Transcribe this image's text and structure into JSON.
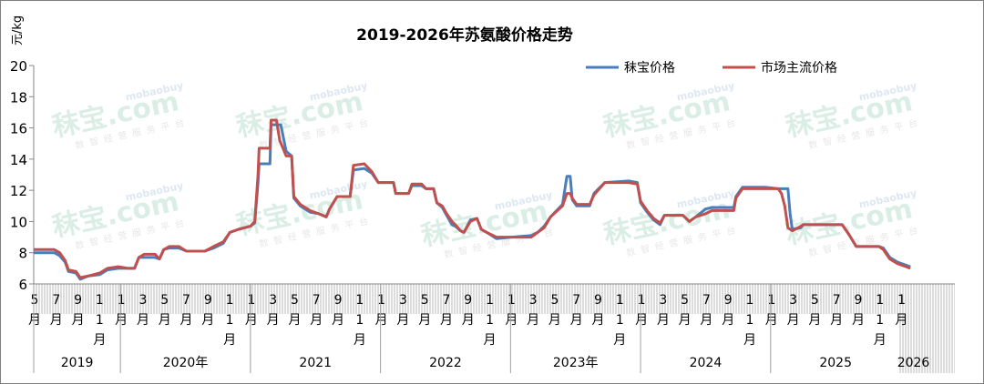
{
  "chart_data": {
    "type": "line",
    "title": "2019-2026年苏氨酸价格走势",
    "ylabel": "元/kg",
    "xlabel": "",
    "ylim": [
      6,
      20
    ],
    "yticks": [
      "6",
      "8",
      "10",
      "12",
      "14",
      "16",
      "18",
      "20"
    ],
    "x_unit": "months since 2019-05",
    "xlim": [
      0,
      85
    ],
    "legend": {
      "placement": "top-right",
      "entries": [
        "秣宝价格",
        "市场主流价格"
      ]
    },
    "grid": false,
    "month_labels": [
      {
        "m": 0,
        "label": "5月"
      },
      {
        "m": 2,
        "label": "7月"
      },
      {
        "m": 4,
        "label": "9月"
      },
      {
        "m": 6,
        "label": "11月"
      },
      {
        "m": 8,
        "label": "1月"
      },
      {
        "m": 10,
        "label": "3月"
      },
      {
        "m": 12,
        "label": "5月"
      },
      {
        "m": 14,
        "label": "7月"
      },
      {
        "m": 16,
        "label": "9月"
      },
      {
        "m": 18,
        "label": "11月"
      },
      {
        "m": 20,
        "label": "1月"
      },
      {
        "m": 22,
        "label": "3月"
      },
      {
        "m": 24,
        "label": "5月"
      },
      {
        "m": 26,
        "label": "7月"
      },
      {
        "m": 28,
        "label": "9月"
      },
      {
        "m": 30,
        "label": "11月"
      },
      {
        "m": 32,
        "label": "1月"
      },
      {
        "m": 34,
        "label": "3月"
      },
      {
        "m": 36,
        "label": "5月"
      },
      {
        "m": 38,
        "label": "7月"
      },
      {
        "m": 40,
        "label": "9月"
      },
      {
        "m": 42,
        "label": "11月"
      },
      {
        "m": 44,
        "label": "1月"
      },
      {
        "m": 46,
        "label": "3月"
      },
      {
        "m": 48,
        "label": "5月"
      },
      {
        "m": 50,
        "label": "7月"
      },
      {
        "m": 52,
        "label": "9月"
      },
      {
        "m": 54,
        "label": "11月"
      },
      {
        "m": 56,
        "label": "1月"
      },
      {
        "m": 58,
        "label": "3月"
      },
      {
        "m": 60,
        "label": "5月"
      },
      {
        "m": 62,
        "label": "7月"
      },
      {
        "m": 64,
        "label": "9月"
      },
      {
        "m": 66,
        "label": "11月"
      },
      {
        "m": 68,
        "label": "1月"
      },
      {
        "m": 70,
        "label": "3月"
      },
      {
        "m": 72,
        "label": "5月"
      },
      {
        "m": 74,
        "label": "7月"
      },
      {
        "m": 76,
        "label": "9月"
      },
      {
        "m": 78,
        "label": "11月"
      },
      {
        "m": 80,
        "label": "1月"
      }
    ],
    "year_labels": [
      {
        "label": "2019",
        "from": 0,
        "to": 8
      },
      {
        "label": "2020年",
        "from": 8,
        "to": 20
      },
      {
        "label": "2021",
        "from": 20,
        "to": 32
      },
      {
        "label": "2022",
        "from": 32,
        "to": 44
      },
      {
        "label": "2023年",
        "from": 44,
        "to": 56
      },
      {
        "label": "2024",
        "from": 56,
        "to": 68
      },
      {
        "label": "2025",
        "from": 68,
        "to": 80
      },
      {
        "label": "2026",
        "from": 80,
        "to": 81
      }
    ],
    "series": [
      {
        "name": "秣宝价格",
        "color": "#4a7ebb",
        "points": [
          [
            0,
            8.0
          ],
          [
            1.9,
            8.0
          ],
          [
            2.4,
            7.8
          ],
          [
            2.9,
            7.4
          ],
          [
            3.2,
            6.8
          ],
          [
            3.9,
            6.7
          ],
          [
            4.3,
            6.3
          ],
          [
            5.0,
            6.5
          ],
          [
            6.1,
            6.6
          ],
          [
            6.8,
            6.9
          ],
          [
            7.8,
            7.0
          ],
          [
            8.7,
            7.0
          ],
          [
            9.3,
            7.0
          ],
          [
            9.7,
            7.7
          ],
          [
            10.2,
            7.7
          ],
          [
            11.2,
            7.7
          ],
          [
            11.6,
            7.6
          ],
          [
            12.0,
            8.2
          ],
          [
            12.5,
            8.3
          ],
          [
            13.4,
            8.3
          ],
          [
            14.1,
            8.1
          ],
          [
            15.8,
            8.1
          ],
          [
            16.6,
            8.3
          ],
          [
            17.5,
            8.6
          ],
          [
            18.1,
            9.3
          ],
          [
            18.9,
            9.5
          ],
          [
            20.0,
            9.7
          ],
          [
            20.4,
            9.9
          ],
          [
            20.7,
            12.5
          ],
          [
            20.8,
            13.7
          ],
          [
            21.8,
            13.7
          ],
          [
            21.9,
            16.2
          ],
          [
            22.4,
            16.2
          ],
          [
            22.8,
            16.2
          ],
          [
            23.3,
            14.5
          ],
          [
            23.8,
            14.2
          ],
          [
            24.0,
            11.5
          ],
          [
            24.6,
            11.0
          ],
          [
            25.5,
            10.6
          ],
          [
            26.3,
            10.5
          ],
          [
            27.0,
            10.3
          ],
          [
            27.3,
            10.8
          ],
          [
            28.0,
            11.6
          ],
          [
            29.2,
            11.6
          ],
          [
            29.5,
            13.3
          ],
          [
            30.5,
            13.4
          ],
          [
            31.2,
            13.1
          ],
          [
            31.8,
            12.5
          ],
          [
            33.2,
            12.5
          ],
          [
            33.4,
            11.8
          ],
          [
            34.6,
            11.8
          ],
          [
            34.9,
            12.3
          ],
          [
            35.8,
            12.3
          ],
          [
            36.2,
            12.1
          ],
          [
            36.9,
            12.1
          ],
          [
            37.2,
            11.2
          ],
          [
            37.7,
            10.9
          ],
          [
            38.1,
            10.4
          ],
          [
            38.6,
            9.8
          ],
          [
            38.9,
            9.7
          ],
          [
            39.4,
            9.4
          ],
          [
            39.7,
            9.3
          ],
          [
            40.3,
            10.1
          ],
          [
            40.9,
            10.2
          ],
          [
            41.3,
            9.5
          ],
          [
            41.8,
            9.3
          ],
          [
            42.7,
            8.9
          ],
          [
            44.1,
            9.0
          ],
          [
            45.9,
            9.1
          ],
          [
            46.5,
            9.3
          ],
          [
            47.1,
            9.7
          ],
          [
            47.7,
            10.3
          ],
          [
            48.8,
            11.1
          ],
          [
            49.2,
            12.9
          ],
          [
            49.5,
            12.9
          ],
          [
            49.7,
            11.4
          ],
          [
            50.1,
            11.0
          ],
          [
            51.3,
            11.0
          ],
          [
            51.7,
            11.8
          ],
          [
            52.7,
            12.5
          ],
          [
            54.9,
            12.6
          ],
          [
            55.7,
            12.5
          ],
          [
            56.0,
            11.2
          ],
          [
            56.6,
            10.6
          ],
          [
            57.2,
            10.1
          ],
          [
            57.8,
            9.8
          ],
          [
            58.2,
            10.4
          ],
          [
            59.9,
            10.4
          ],
          [
            60.5,
            10.0
          ],
          [
            61.1,
            10.3
          ],
          [
            62.0,
            10.8
          ],
          [
            62.6,
            10.9
          ],
          [
            64.6,
            10.9
          ],
          [
            64.8,
            11.6
          ],
          [
            65.4,
            12.2
          ],
          [
            67.5,
            12.2
          ],
          [
            68.7,
            12.1
          ],
          [
            69.6,
            12.1
          ],
          [
            69.8,
            10.5
          ],
          [
            70.0,
            9.5
          ],
          [
            70.8,
            9.6
          ],
          [
            71.0,
            9.8
          ],
          [
            74.6,
            9.8
          ],
          [
            75.2,
            9.2
          ],
          [
            75.9,
            8.4
          ],
          [
            78.0,
            8.4
          ],
          [
            78.4,
            8.3
          ],
          [
            79.0,
            7.7
          ],
          [
            79.7,
            7.4
          ],
          [
            80.5,
            7.2
          ],
          [
            80.9,
            7.1
          ]
        ]
      },
      {
        "name": "市场主流价格",
        "color": "#c0504d",
        "points": [
          [
            0,
            8.2
          ],
          [
            1.9,
            8.2
          ],
          [
            2.4,
            8.0
          ],
          [
            2.9,
            7.5
          ],
          [
            3.2,
            6.9
          ],
          [
            3.9,
            6.8
          ],
          [
            4.3,
            6.4
          ],
          [
            5.0,
            6.5
          ],
          [
            6.1,
            6.7
          ],
          [
            6.8,
            7.0
          ],
          [
            7.8,
            7.1
          ],
          [
            8.7,
            7.0
          ],
          [
            9.3,
            7.0
          ],
          [
            9.7,
            7.7
          ],
          [
            10.2,
            7.9
          ],
          [
            11.2,
            7.9
          ],
          [
            11.6,
            7.6
          ],
          [
            12.0,
            8.2
          ],
          [
            12.5,
            8.4
          ],
          [
            13.4,
            8.4
          ],
          [
            14.1,
            8.1
          ],
          [
            15.8,
            8.1
          ],
          [
            16.6,
            8.4
          ],
          [
            17.5,
            8.7
          ],
          [
            18.1,
            9.3
          ],
          [
            18.9,
            9.5
          ],
          [
            20.0,
            9.7
          ],
          [
            20.4,
            10.0
          ],
          [
            20.7,
            13.0
          ],
          [
            20.8,
            14.7
          ],
          [
            21.8,
            14.7
          ],
          [
            21.9,
            16.5
          ],
          [
            22.4,
            16.5
          ],
          [
            22.7,
            15.2
          ],
          [
            23.3,
            14.2
          ],
          [
            23.8,
            14.2
          ],
          [
            24.0,
            11.6
          ],
          [
            24.6,
            11.1
          ],
          [
            25.5,
            10.7
          ],
          [
            26.3,
            10.5
          ],
          [
            27.0,
            10.3
          ],
          [
            27.3,
            10.8
          ],
          [
            28.0,
            11.6
          ],
          [
            29.2,
            11.6
          ],
          [
            29.5,
            13.6
          ],
          [
            30.5,
            13.7
          ],
          [
            31.2,
            13.2
          ],
          [
            31.8,
            12.5
          ],
          [
            33.2,
            12.5
          ],
          [
            33.4,
            11.8
          ],
          [
            34.6,
            11.8
          ],
          [
            34.9,
            12.4
          ],
          [
            35.8,
            12.4
          ],
          [
            36.2,
            12.1
          ],
          [
            36.9,
            12.1
          ],
          [
            37.2,
            11.2
          ],
          [
            37.7,
            11.0
          ],
          [
            38.1,
            10.5
          ],
          [
            38.6,
            10.0
          ],
          [
            38.9,
            9.8
          ],
          [
            39.4,
            9.4
          ],
          [
            39.7,
            9.3
          ],
          [
            40.3,
            10.0
          ],
          [
            40.9,
            10.2
          ],
          [
            41.3,
            9.5
          ],
          [
            41.8,
            9.3
          ],
          [
            42.7,
            9.0
          ],
          [
            44.1,
            9.0
          ],
          [
            45.9,
            9.0
          ],
          [
            46.5,
            9.3
          ],
          [
            47.1,
            9.6
          ],
          [
            47.7,
            10.3
          ],
          [
            48.8,
            11.0
          ],
          [
            49.2,
            11.8
          ],
          [
            49.5,
            11.8
          ],
          [
            49.7,
            11.5
          ],
          [
            50.1,
            11.1
          ],
          [
            51.3,
            11.1
          ],
          [
            51.7,
            11.7
          ],
          [
            52.7,
            12.5
          ],
          [
            54.9,
            12.5
          ],
          [
            55.7,
            12.4
          ],
          [
            56.0,
            11.3
          ],
          [
            56.6,
            10.7
          ],
          [
            57.2,
            10.2
          ],
          [
            57.8,
            9.9
          ],
          [
            58.2,
            10.4
          ],
          [
            59.9,
            10.4
          ],
          [
            60.5,
            10.0
          ],
          [
            61.1,
            10.3
          ],
          [
            62.0,
            10.5
          ],
          [
            62.6,
            10.7
          ],
          [
            64.6,
            10.7
          ],
          [
            64.8,
            11.5
          ],
          [
            65.4,
            12.1
          ],
          [
            67.5,
            12.1
          ],
          [
            68.7,
            12.1
          ],
          [
            69.0,
            11.8
          ],
          [
            69.3,
            11.0
          ],
          [
            69.6,
            9.6
          ],
          [
            70.0,
            9.4
          ],
          [
            70.8,
            9.7
          ],
          [
            71.0,
            9.8
          ],
          [
            74.6,
            9.8
          ],
          [
            75.2,
            9.2
          ],
          [
            75.9,
            8.4
          ],
          [
            78.0,
            8.4
          ],
          [
            78.4,
            8.2
          ],
          [
            79.0,
            7.6
          ],
          [
            79.7,
            7.3
          ],
          [
            80.5,
            7.1
          ],
          [
            80.9,
            7.0
          ]
        ]
      }
    ]
  },
  "watermark": {
    "brand": "秣宝.com",
    "domain": "mobaobuy",
    "slogan": "数智经营服务平台"
  }
}
